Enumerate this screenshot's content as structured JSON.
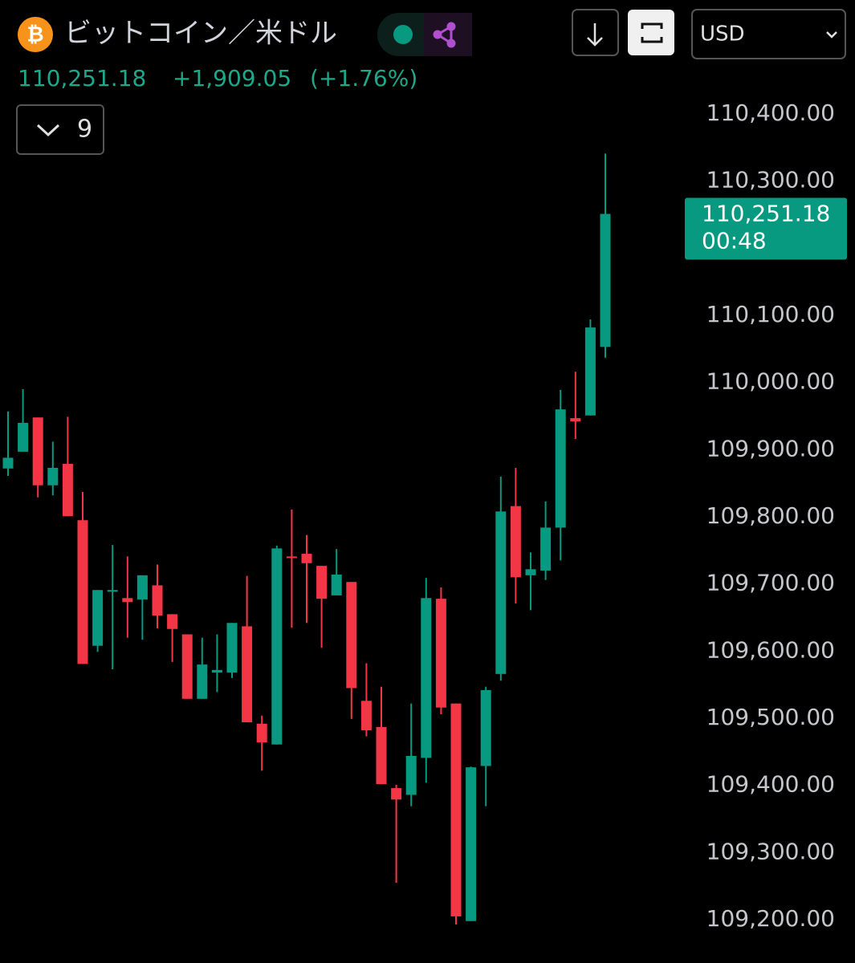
{
  "header": {
    "icon": "₿",
    "title": "ビットコイン／米ドル",
    "price": "110,251.18",
    "change": "+1,909.05",
    "change_pct": "(+1.76%)",
    "indicator_count": "9",
    "currency": "USD"
  },
  "price_tag": {
    "price": "110,251.18",
    "timer": "00:48"
  },
  "chart_data": {
    "type": "candlestick",
    "up_color": "#089981",
    "down_color": "#f23645",
    "open": [
      109872,
      109897,
      109948,
      109847,
      109879,
      109795,
      109608,
      109689,
      109679,
      109677,
      109698,
      109655,
      109625,
      109529,
      109568,
      109568,
      109637,
      109492,
      109461,
      109741,
      109745,
      109727,
      109683,
      109703,
      109526,
      109487,
      109396,
      109386,
      109441,
      109678,
      109522,
      109198,
      109429,
      109566,
      109816,
      109713,
      109720,
      109784,
      109947,
      109951,
      110053
    ],
    "high": [
      109957,
      109990,
      109948,
      109912,
      109949,
      109837,
      109691,
      109758,
      109741,
      109713,
      109729,
      109655,
      109625,
      109620,
      109625,
      109642,
      109712,
      109504,
      109757,
      109811,
      109773,
      109727,
      109752,
      109703,
      109582,
      109547,
      109401,
      109522,
      109709,
      109695,
      109522,
      109428,
      109547,
      109860,
      109873,
      109747,
      109823,
      109989,
      110016,
      110094,
      110341
    ],
    "low": [
      109861,
      109897,
      109829,
      109832,
      109801,
      109581,
      109599,
      109573,
      109620,
      109617,
      109634,
      109584,
      109529,
      109529,
      109539,
      109560,
      109494,
      109422,
      109461,
      109635,
      109642,
      109605,
      109683,
      109499,
      109473,
      109402,
      109255,
      109369,
      109404,
      109506,
      109193,
      109198,
      109369,
      109556,
      109671,
      109661,
      109706,
      109735,
      109916,
      109951,
      110037
    ],
    "close": [
      109888,
      109940,
      109847,
      109873,
      109801,
      109581,
      109691,
      109691,
      109673,
      109713,
      109653,
      109633,
      109529,
      109580,
      109572,
      109642,
      109494,
      109464,
      109753,
      109739,
      109731,
      109678,
      109714,
      109545,
      109482,
      109402,
      109379,
      109444,
      109679,
      109516,
      109205,
      109427,
      109542,
      109808,
      109710,
      109722,
      109784,
      109960,
      109942,
      110082,
      110251.18
    ],
    "ylim": [
      109150,
      110425
    ],
    "yticks": [
      {
        "value": 109200,
        "label": "109,200.00"
      },
      {
        "value": 109300,
        "label": "109,300.00"
      },
      {
        "value": 109400,
        "label": "109,400.00"
      },
      {
        "value": 109500,
        "label": "109,500.00"
      },
      {
        "value": 109600,
        "label": "109,600.00"
      },
      {
        "value": 109700,
        "label": "109,700.00"
      },
      {
        "value": 109800,
        "label": "109,800.00"
      },
      {
        "value": 109900,
        "label": "109,900.00"
      },
      {
        "value": 110000,
        "label": "110,000.00"
      },
      {
        "value": 110100,
        "label": "110,100.00"
      },
      {
        "value": 110300,
        "label": "110,300.00"
      },
      {
        "value": 110400,
        "label": "110,400.00"
      }
    ]
  }
}
